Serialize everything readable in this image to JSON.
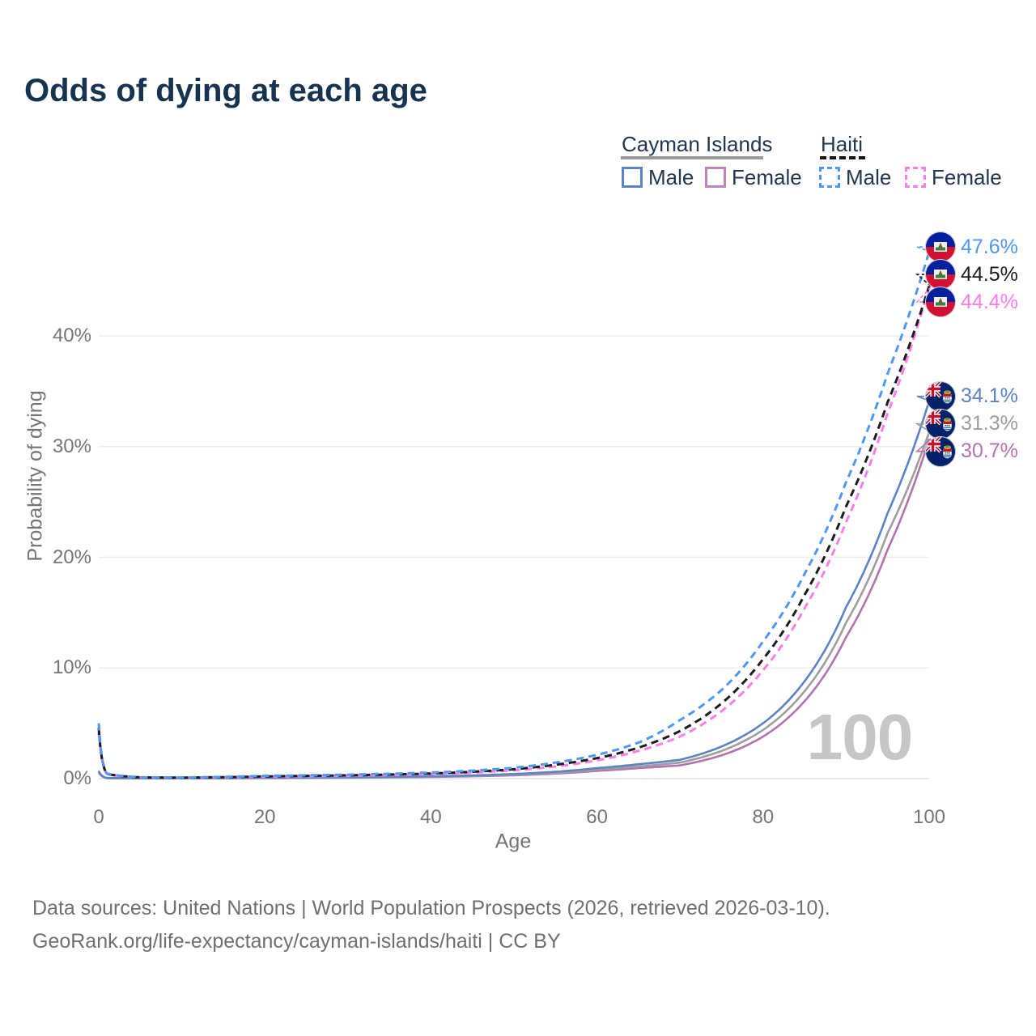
{
  "title": "Odds of dying at each age",
  "watermark": "100",
  "footer": {
    "line1": "Data sources: United Nations | World Population Prospects (2026, retrieved 2026-03-10).",
    "line2": "GeoRank.org/life-expectancy/cayman-islands/haiti | CC BY"
  },
  "legend": {
    "groups": [
      {
        "label": "Cayman Islands",
        "line_style": "solid",
        "underline_color": "#9a9a9a",
        "items": [
          {
            "label": "Male",
            "color": "#5b84c4",
            "dashed": false
          },
          {
            "label": "Female",
            "color": "#c183bd",
            "dashed": false
          }
        ]
      },
      {
        "label": "Haiti",
        "line_style": "dashed",
        "underline_color": "#151515",
        "items": [
          {
            "label": "Male",
            "color": "#4e97f5",
            "dashed": true
          },
          {
            "label": "Female",
            "color": "#fb7de9",
            "dashed": true
          }
        ]
      }
    ]
  },
  "chart_data": {
    "type": "line",
    "title": "Odds of dying at each age",
    "xlabel": "Age",
    "ylabel": "Probability of dying",
    "x_ticks": [
      "0",
      "20",
      "40",
      "60",
      "80",
      "100"
    ],
    "y_ticks": [
      "0%",
      "10%",
      "20%",
      "30%",
      "40%"
    ],
    "xlim": [
      0,
      100
    ],
    "ylim": [
      0,
      48
    ],
    "grid": true,
    "legend_position": "top-right",
    "ages": [
      0,
      1,
      5,
      10,
      15,
      20,
      25,
      30,
      35,
      40,
      45,
      50,
      55,
      60,
      65,
      70,
      75,
      80,
      85,
      90,
      95,
      100
    ],
    "series": [
      {
        "name": "Cayman Islands Male",
        "country": "Cayman Islands",
        "sex": "male",
        "flag": "cayman",
        "color": "#5b84c4",
        "dashed": false,
        "end_label": "34.1%",
        "values": [
          0.7,
          0.06,
          0.03,
          0.03,
          0.05,
          0.08,
          0.1,
          0.13,
          0.16,
          0.21,
          0.29,
          0.42,
          0.62,
          0.95,
          1.3,
          1.7,
          2.9,
          5.0,
          8.8,
          15.5,
          24.0,
          34.1
        ]
      },
      {
        "name": "Cayman Islands",
        "country": "Cayman Islands",
        "sex": "all",
        "flag": "cayman",
        "color": "#9e9e9e",
        "dashed": false,
        "end_label": "31.3%",
        "values": [
          0.6,
          0.05,
          0.02,
          0.02,
          0.04,
          0.06,
          0.08,
          0.1,
          0.13,
          0.18,
          0.25,
          0.36,
          0.53,
          0.82,
          1.1,
          1.45,
          2.5,
          4.4,
          7.9,
          14.1,
          22.2,
          31.3
        ]
      },
      {
        "name": "Cayman Islands Female",
        "country": "Cayman Islands",
        "sex": "female",
        "flag": "cayman",
        "color": "#b472b0",
        "dashed": false,
        "end_label": "30.7%",
        "values": [
          0.55,
          0.05,
          0.02,
          0.02,
          0.03,
          0.05,
          0.06,
          0.08,
          0.11,
          0.15,
          0.21,
          0.3,
          0.45,
          0.7,
          0.95,
          1.2,
          2.1,
          3.8,
          7.0,
          12.8,
          20.7,
          30.7
        ]
      },
      {
        "name": "Haiti Male",
        "country": "Haiti",
        "sex": "male",
        "flag": "haiti",
        "color": "#4e97f5",
        "dashed": true,
        "end_label": "47.6%",
        "values": [
          5.0,
          0.45,
          0.12,
          0.1,
          0.16,
          0.25,
          0.3,
          0.36,
          0.44,
          0.55,
          0.72,
          0.98,
          1.45,
          2.15,
          3.25,
          5.3,
          8.0,
          12.4,
          18.5,
          26.8,
          36.6,
          47.6
        ]
      },
      {
        "name": "Haiti",
        "country": "Haiti",
        "sex": "all",
        "flag": "haiti",
        "color": "#1c1c1c",
        "dashed": true,
        "end_label": "44.5%",
        "values": [
          4.6,
          0.42,
          0.11,
          0.09,
          0.13,
          0.2,
          0.25,
          0.3,
          0.37,
          0.46,
          0.62,
          0.85,
          1.25,
          1.85,
          2.8,
          4.3,
          6.8,
          10.8,
          16.6,
          24.6,
          34.0,
          44.5
        ]
      },
      {
        "name": "Haiti Female",
        "country": "Haiti",
        "sex": "female",
        "flag": "haiti",
        "color": "#fb7de9",
        "dashed": true,
        "end_label": "44.4%",
        "values": [
          4.2,
          0.4,
          0.1,
          0.08,
          0.11,
          0.17,
          0.21,
          0.25,
          0.31,
          0.4,
          0.54,
          0.75,
          1.1,
          1.65,
          2.5,
          3.8,
          6.1,
          9.8,
          15.4,
          23.2,
          33.0,
          44.4
        ]
      }
    ]
  }
}
